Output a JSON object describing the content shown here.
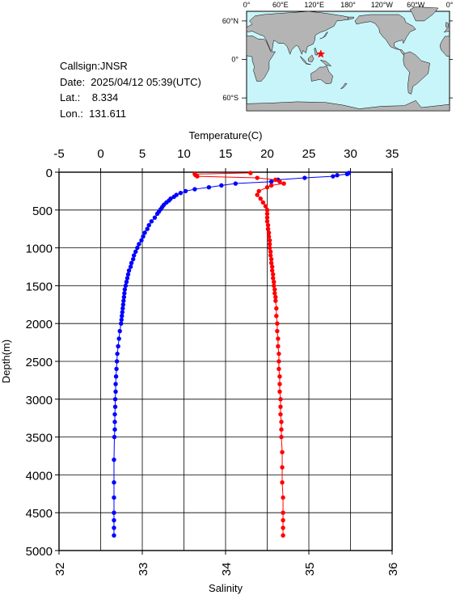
{
  "station": {
    "callsign": "Callsign:JNSR",
    "date": "Date:  2025/04/12 05:39(UTC)",
    "lat": "Lat.:    8.334",
    "lon": "Lon.:  131.611"
  },
  "map": {
    "top_labels": [
      "0°",
      "60°E",
      "120°E",
      "180°",
      "120°W",
      "60°W",
      "0°"
    ],
    "side_labels": [
      "60°N",
      "0°",
      "60°S"
    ],
    "ocean_color": "#c8f5fa",
    "land_color": "#b4b4b4",
    "marker": "red-star",
    "marker_lon": 131.611,
    "marker_lat": 8.334
  },
  "chart_data": {
    "type": "line",
    "title": "",
    "top_axis": {
      "label": "Temperature(C)",
      "range": [
        -5,
        35
      ],
      "ticks": [
        "-5",
        "0",
        "5",
        "10",
        "15",
        "20",
        "25",
        "30",
        "35"
      ]
    },
    "bottom_axis": {
      "label": "Salinity",
      "range": [
        32,
        36
      ],
      "ticks": [
        "32",
        "33",
        "34",
        "35",
        "36"
      ]
    },
    "y_axis": {
      "label": "Depth(m)",
      "range": [
        0,
        5000
      ],
      "inverted": true,
      "ticks": [
        "0",
        "500",
        "1000",
        "1500",
        "2000",
        "2500",
        "3000",
        "3500",
        "4000",
        "4500",
        "5000"
      ]
    },
    "grid": true,
    "series": [
      {
        "axis": "top",
        "color": "#0000ff",
        "depth": [
          10,
          25,
          40,
          55,
          75,
          100,
          125,
          150,
          175,
          200,
          225,
          250,
          275,
          300,
          325,
          350,
          375,
          400,
          430,
          460,
          490,
          520,
          550,
          600,
          650,
          700,
          750,
          800,
          850,
          900,
          950,
          1000,
          1050,
          1100,
          1150,
          1200,
          1250,
          1300,
          1350,
          1400,
          1450,
          1500,
          1550,
          1600,
          1650,
          1700,
          1750,
          1800,
          1850,
          1900,
          1950,
          2000,
          2100,
          2200,
          2300,
          2400,
          2500,
          2600,
          2700,
          2800,
          2900,
          3000,
          3100,
          3200,
          3300,
          3400,
          3500,
          3800,
          4100,
          4300,
          4500,
          4600,
          4700,
          4800
        ],
        "values": [
          29.8,
          29.6,
          28.4,
          27.9,
          24.5,
          21.3,
          20.5,
          16.2,
          14.5,
          13.0,
          11.3,
          10.2,
          9.6,
          9.1,
          8.8,
          8.4,
          8.2,
          7.9,
          7.6,
          7.4,
          7.2,
          7.0,
          6.8,
          6.5,
          6.1,
          5.8,
          5.6,
          5.3,
          5.1,
          4.9,
          4.6,
          4.4,
          4.2,
          4.0,
          3.9,
          3.7,
          3.6,
          3.4,
          3.3,
          3.2,
          3.1,
          3.0,
          2.9,
          2.85,
          2.8,
          2.75,
          2.7,
          2.65,
          2.6,
          2.55,
          2.5,
          2.45,
          2.3,
          2.2,
          2.1,
          2.0,
          1.95,
          1.9,
          1.85,
          1.8,
          1.8,
          1.75,
          1.75,
          1.7,
          1.7,
          1.7,
          1.65,
          1.6,
          1.6,
          1.6,
          1.6,
          1.6,
          1.6,
          1.6
        ]
      },
      {
        "axis": "bottom",
        "color": "#ff0000",
        "depth": [
          10,
          25,
          40,
          55,
          75,
          100,
          125,
          150,
          175,
          200,
          250,
          300,
          350,
          400,
          450,
          500,
          550,
          600,
          650,
          700,
          750,
          800,
          850,
          900,
          950,
          1000,
          1050,
          1100,
          1150,
          1200,
          1250,
          1300,
          1350,
          1400,
          1450,
          1500,
          1550,
          1600,
          1650,
          1700,
          1800,
          1900,
          2000,
          2100,
          2200,
          2300,
          2400,
          2500,
          2600,
          2700,
          2800,
          2900,
          3000,
          3100,
          3200,
          3300,
          3400,
          3500,
          3700,
          3900,
          4100,
          4300,
          4500,
          4600,
          4700,
          4800
        ],
        "values": [
          34.3,
          33.63,
          33.64,
          33.66,
          34.38,
          34.6,
          34.65,
          34.7,
          34.55,
          34.5,
          34.4,
          34.38,
          34.42,
          34.45,
          34.48,
          34.5,
          34.5,
          34.5,
          34.5,
          34.51,
          34.51,
          34.52,
          34.52,
          34.53,
          34.53,
          34.53,
          34.54,
          34.54,
          34.55,
          34.55,
          34.56,
          34.56,
          34.57,
          34.57,
          34.58,
          34.58,
          34.59,
          34.59,
          34.6,
          34.6,
          34.61,
          34.61,
          34.62,
          34.62,
          34.63,
          34.63,
          34.64,
          34.64,
          34.64,
          34.65,
          34.65,
          34.65,
          34.66,
          34.66,
          34.66,
          34.67,
          34.67,
          34.67,
          34.68,
          34.68,
          34.68,
          34.69,
          34.69,
          34.69,
          34.69,
          34.69
        ]
      }
    ]
  }
}
